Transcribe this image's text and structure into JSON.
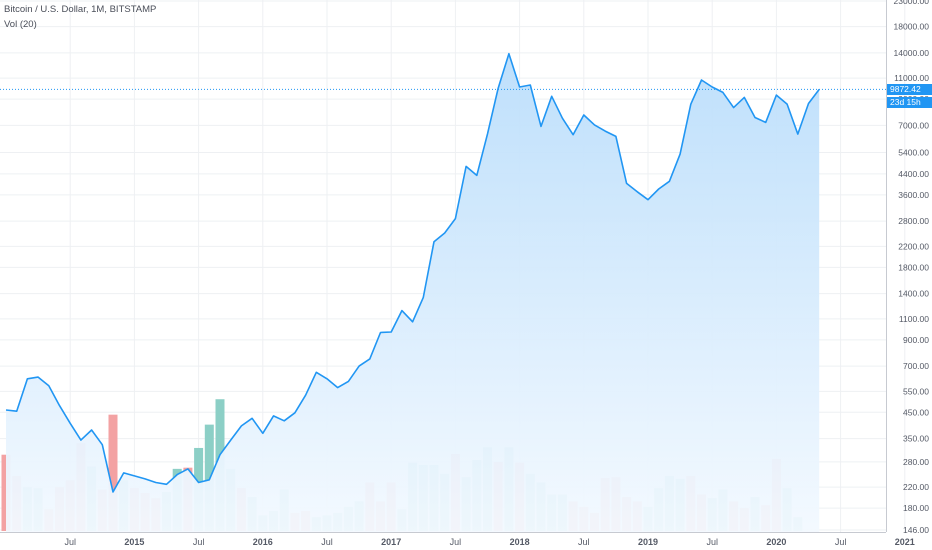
{
  "header": {
    "title": "Bitcoin / U.S. Dollar, 1M, BITSTAMP",
    "volume_label": "Vol (20)"
  },
  "current_price_label": "9872.42",
  "countdown_label": "23d 15h",
  "colors": {
    "line": "#2196f3",
    "area_top": "#bbdefb",
    "area_bottom": "#f3f9ff",
    "volume_up": "#8ccfc6",
    "volume_down": "#f3a2a3",
    "grid": "#eef0f3",
    "axis_text": "#555a66",
    "price_tag": "#2196f3"
  },
  "chart_data": {
    "type": "line",
    "title": "Bitcoin / U.S. Dollar, 1M, BITSTAMP",
    "scale": "log",
    "ylim": [
      146,
      23000
    ],
    "xlim": [
      "2014-01",
      "2021-05"
    ],
    "grid": true,
    "x_tick_labels": [
      "Jul",
      "2015",
      "Jul",
      "2016",
      "Jul",
      "2017",
      "Jul",
      "2018",
      "Jul",
      "2019",
      "Jul",
      "2020",
      "Jul",
      "2021"
    ],
    "x_tick_dates": [
      "2014-07",
      "2015-01",
      "2015-07",
      "2016-01",
      "2016-07",
      "2017-01",
      "2017-07",
      "2018-01",
      "2018-07",
      "2019-01",
      "2019-07",
      "2020-01",
      "2020-07",
      "2021-01"
    ],
    "y_tick_labels": [
      "146.00",
      "180.00",
      "220.00",
      "280.00",
      "350.00",
      "450.00",
      "550.00",
      "700.00",
      "900.00",
      "1100.00",
      "1400.00",
      "1800.00",
      "2200.00",
      "2800.00",
      "3600.00",
      "4400.00",
      "5400.00",
      "7000.00",
      "9000.00",
      "11000.00",
      "14000.00",
      "18000.00",
      "23000.00"
    ],
    "y_tick_values": [
      146,
      180,
      220,
      280,
      350,
      450,
      550,
      700,
      900,
      1100,
      1400,
      1800,
      2200,
      2800,
      3600,
      4400,
      5400,
      7000,
      9000,
      11000,
      14000,
      18000,
      23000
    ],
    "series": [
      {
        "values": [
          [
            "2014-01",
            460
          ],
          [
            "2014-02",
            455
          ],
          [
            "2014-03",
            620
          ],
          [
            "2014-04",
            630
          ],
          [
            "2014-05",
            580
          ],
          [
            "2014-06",
            480
          ],
          [
            "2014-07",
            405
          ],
          [
            "2014-08",
            345
          ],
          [
            "2014-09",
            380
          ],
          [
            "2014-10",
            330
          ],
          [
            "2014-11",
            210
          ],
          [
            "2014-12",
            252
          ],
          [
            "2015-01",
            245
          ],
          [
            "2015-02",
            238
          ],
          [
            "2015-03",
            230
          ],
          [
            "2015-04",
            226
          ],
          [
            "2015-05",
            248
          ],
          [
            "2015-06",
            262
          ],
          [
            "2015-07",
            230
          ],
          [
            "2015-08",
            236
          ],
          [
            "2015-09",
            300
          ],
          [
            "2015-10",
            345
          ],
          [
            "2015-11",
            395
          ],
          [
            "2015-12",
            425
          ],
          [
            "2016-01",
            368
          ],
          [
            "2016-02",
            435
          ],
          [
            "2016-03",
            415
          ],
          [
            "2016-04",
            448
          ],
          [
            "2016-05",
            530
          ],
          [
            "2016-06",
            660
          ],
          [
            "2016-07",
            620
          ],
          [
            "2016-08",
            570
          ],
          [
            "2016-09",
            605
          ],
          [
            "2016-10",
            700
          ],
          [
            "2016-11",
            750
          ],
          [
            "2016-12",
            965
          ],
          [
            "2017-01",
            970
          ],
          [
            "2017-02",
            1190
          ],
          [
            "2017-03",
            1070
          ],
          [
            "2017-04",
            1350
          ],
          [
            "2017-05",
            2300
          ],
          [
            "2017-06",
            2500
          ],
          [
            "2017-07",
            2870
          ],
          [
            "2017-08",
            4730
          ],
          [
            "2017-09",
            4340
          ],
          [
            "2017-10",
            6450
          ],
          [
            "2017-11",
            10000
          ],
          [
            "2017-12",
            13900
          ],
          [
            "2018-01",
            10100
          ],
          [
            "2018-02",
            10300
          ],
          [
            "2018-03",
            6930
          ],
          [
            "2018-04",
            9240
          ],
          [
            "2018-05",
            7500
          ],
          [
            "2018-06",
            6400
          ],
          [
            "2018-07",
            7730
          ],
          [
            "2018-08",
            7030
          ],
          [
            "2018-09",
            6630
          ],
          [
            "2018-10",
            6300
          ],
          [
            "2018-11",
            4020
          ],
          [
            "2018-12",
            3710
          ],
          [
            "2019-01",
            3440
          ],
          [
            "2019-02",
            3810
          ],
          [
            "2019-03",
            4100
          ],
          [
            "2019-04",
            5320
          ],
          [
            "2019-05",
            8570
          ],
          [
            "2019-06",
            10800
          ],
          [
            "2019-07",
            10100
          ],
          [
            "2019-08",
            9600
          ],
          [
            "2019-09",
            8300
          ],
          [
            "2019-10",
            9150
          ],
          [
            "2019-11",
            7550
          ],
          [
            "2019-12",
            7200
          ],
          [
            "2020-01",
            9350
          ],
          [
            "2020-02",
            8580
          ],
          [
            "2020-03",
            6440
          ],
          [
            "2020-04",
            8630
          ],
          [
            "2020-05",
            9872.42
          ]
        ]
      }
    ],
    "volume": {
      "label": "Vol (20)",
      "bars": [
        [
          "2014-01",
          300,
          "down"
        ],
        [
          "2014-02",
          245,
          "down"
        ],
        [
          "2014-03",
          220,
          "up"
        ],
        [
          "2014-04",
          218,
          "up"
        ],
        [
          "2014-05",
          178,
          "down"
        ],
        [
          "2014-06",
          220,
          "down"
        ],
        [
          "2014-07",
          235,
          "down"
        ],
        [
          "2014-08",
          335,
          "down"
        ],
        [
          "2014-09",
          268,
          "up"
        ],
        [
          "2014-10",
          215,
          "down"
        ],
        [
          "2014-11",
          440,
          "down"
        ],
        [
          "2014-12",
          235,
          "up"
        ],
        [
          "2015-01",
          218,
          "down"
        ],
        [
          "2015-02",
          208,
          "down"
        ],
        [
          "2015-03",
          198,
          "down"
        ],
        [
          "2015-04",
          210,
          "up"
        ],
        [
          "2015-05",
          262,
          "up"
        ],
        [
          "2015-06",
          265,
          "down"
        ],
        [
          "2015-07",
          320,
          "up"
        ],
        [
          "2015-08",
          400,
          "up"
        ],
        [
          "2015-09",
          510,
          "up"
        ],
        [
          "2015-10",
          262,
          "up"
        ],
        [
          "2015-11",
          218,
          "down"
        ],
        [
          "2015-12",
          200,
          "up"
        ],
        [
          "2016-01",
          168,
          "up"
        ],
        [
          "2016-02",
          175,
          "up"
        ],
        [
          "2016-03",
          215,
          "up"
        ],
        [
          "2016-04",
          172,
          "down"
        ],
        [
          "2016-05",
          175,
          "down"
        ],
        [
          "2016-06",
          165,
          "up"
        ],
        [
          "2016-07",
          168,
          "up"
        ],
        [
          "2016-08",
          172,
          "up"
        ],
        [
          "2016-09",
          182,
          "up"
        ],
        [
          "2016-10",
          192,
          "up"
        ],
        [
          "2016-11",
          230,
          "down"
        ],
        [
          "2016-12",
          192,
          "down"
        ],
        [
          "2017-01",
          230,
          "down"
        ],
        [
          "2017-02",
          178,
          "up"
        ],
        [
          "2017-03",
          278,
          "up"
        ],
        [
          "2017-04",
          272,
          "up"
        ],
        [
          "2017-05",
          272,
          "up"
        ],
        [
          "2017-06",
          250,
          "up"
        ],
        [
          "2017-07",
          302,
          "down"
        ],
        [
          "2017-08",
          242,
          "up"
        ],
        [
          "2017-09",
          285,
          "up"
        ],
        [
          "2017-10",
          322,
          "up"
        ],
        [
          "2017-11",
          280,
          "down"
        ],
        [
          "2017-12",
          322,
          "up"
        ],
        [
          "2018-01",
          278,
          "down"
        ],
        [
          "2018-02",
          250,
          "up"
        ],
        [
          "2018-03",
          230,
          "up"
        ],
        [
          "2018-04",
          205,
          "up"
        ],
        [
          "2018-05",
          205,
          "up"
        ],
        [
          "2018-06",
          192,
          "down"
        ],
        [
          "2018-07",
          182,
          "down"
        ],
        [
          "2018-08",
          172,
          "down"
        ],
        [
          "2018-09",
          240,
          "down"
        ],
        [
          "2018-10",
          242,
          "down"
        ],
        [
          "2018-11",
          200,
          "down"
        ],
        [
          "2018-12",
          192,
          "down"
        ],
        [
          "2019-01",
          182,
          "up"
        ],
        [
          "2019-02",
          218,
          "up"
        ],
        [
          "2019-03",
          245,
          "up"
        ],
        [
          "2019-04",
          238,
          "up"
        ],
        [
          "2019-05",
          245,
          "down"
        ],
        [
          "2019-06",
          205,
          "down"
        ],
        [
          "2019-07",
          198,
          "up"
        ],
        [
          "2019-08",
          215,
          "up"
        ],
        [
          "2019-09",
          192,
          "down"
        ],
        [
          "2019-10",
          180,
          "down"
        ],
        [
          "2019-11",
          200,
          "up"
        ],
        [
          "2019-12",
          185,
          "down"
        ],
        [
          "2020-01",
          288,
          "down"
        ],
        [
          "2020-02",
          218,
          "up"
        ],
        [
          "2020-03",
          165,
          "up"
        ]
      ]
    }
  }
}
